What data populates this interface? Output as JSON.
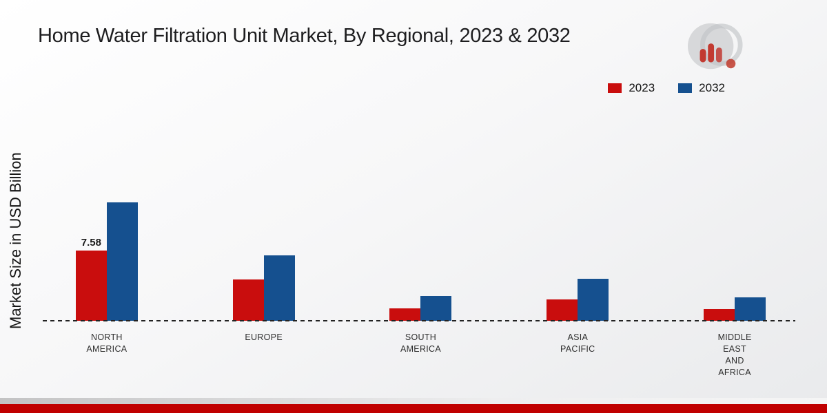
{
  "page": {
    "accent_red": "#c00000",
    "background_top": "#ffffff",
    "background_bottom": "#e9eaec"
  },
  "logo": {
    "name": "market-research-brand-logo"
  },
  "chart_data": {
    "type": "bar",
    "title": "Home Water Filtration Unit Market, By Regional, 2023 & 2032",
    "xlabel": "",
    "ylabel": "Market Size in USD Billion",
    "legend_position": "top-right",
    "grid": false,
    "baseline_style": "dashed",
    "ylim": [
      0,
      13
    ],
    "categories": [
      [
        "NORTH",
        "AMERICA"
      ],
      [
        "EUROPE"
      ],
      [
        "SOUTH",
        "AMERICA"
      ],
      [
        "ASIA",
        "PACIFIC"
      ],
      [
        "MIDDLE",
        "EAST",
        "AND",
        "AFRICA"
      ]
    ],
    "series": [
      {
        "name": "2023",
        "color": "#c90d0d",
        "values": [
          7.58,
          4.5,
          1.35,
          2.3,
          1.25
        ],
        "labels": [
          "7.58",
          "",
          "",
          "",
          ""
        ]
      },
      {
        "name": "2032",
        "color": "#15508f",
        "values": [
          12.8,
          7.1,
          2.7,
          4.55,
          2.55
        ],
        "labels": [
          "",
          "",
          "",
          "",
          ""
        ]
      }
    ]
  }
}
